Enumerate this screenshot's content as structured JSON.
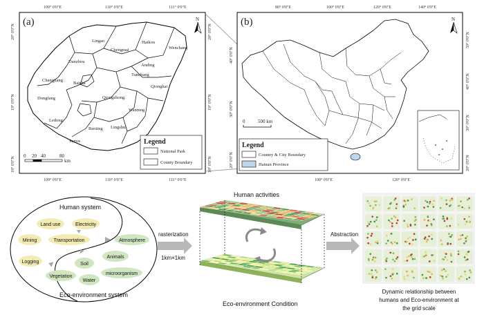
{
  "panel_a": {
    "label": "(a)",
    "lon_ticks": [
      "109° 0'0\"E",
      "110° 0'0\"E",
      "111° 0'0\"E"
    ],
    "lat_ticks": [
      "20° 0'0\"N",
      "19° 0'0\"N",
      "18° 0'0\"N"
    ],
    "north": "N",
    "counties": [
      "Lingao",
      "Haikou",
      "Chengmai",
      "Wenchang",
      "Danzhou",
      "Anding",
      "Changjiang",
      "Tunchang",
      "Qionghai",
      "Baisha",
      "Qiongzhong",
      "Dongfang",
      "Wanning",
      "Ledong",
      "Baoting",
      "Lingshui",
      "Sanya"
    ],
    "legend_title": "Legend",
    "legend_items": [
      "National Park",
      "County Boundary"
    ],
    "scale_labels": [
      "0",
      "20",
      "40",
      "80"
    ],
    "scale_unit": "km"
  },
  "panel_b": {
    "label": "(b)",
    "lon_ticks": [
      "80° 0'0\"E",
      "100° 0'0\"E",
      "120° 0'0\"E",
      "140° 0'0\"E"
    ],
    "lon_ticks_bottom": [
      "100° 0'0\"E",
      "120° 0'0\"E"
    ],
    "lat_ticks": [
      "40° 0'0\"N",
      "30° 0'0\"N",
      "20° 0'0\"N"
    ],
    "lat_ticks_right": [
      "50° 0'0\"N",
      "40° 0'0\"N",
      "30° 0'0\"N",
      "20° 0'0\"N"
    ],
    "north": "N",
    "scale_labels": [
      "0",
      "500 km"
    ],
    "legend_title": "Legend",
    "legend_items": [
      "Country & City Boundary",
      "Hainan Province"
    ]
  },
  "diagram": {
    "human_system": "Human system",
    "eco_system": "Eco-environment system",
    "human_items": [
      "Land use",
      "Electricity",
      "Mining",
      "Transportation",
      "Logging"
    ],
    "eco_items": [
      "Atmosphere",
      "Animals",
      "Soil",
      "Vegetation",
      "Water",
      "microorganism"
    ],
    "rasterization": "rasterization",
    "grid_size": "1km×1km",
    "human_activities": "Human activities",
    "eco_condition": "Eco-environment Condition",
    "abstraction": "Abstraction",
    "caption_lines": [
      "Dynamic relationship between",
      "humans and Eco-environment at",
      "the grid scale"
    ]
  },
  "colors": {
    "human_pill": "#f3ecb2",
    "eco_pill": "#cfe6c1",
    "arrow": "#b8b8b8",
    "hainan_fill": "#bcd7ee"
  }
}
